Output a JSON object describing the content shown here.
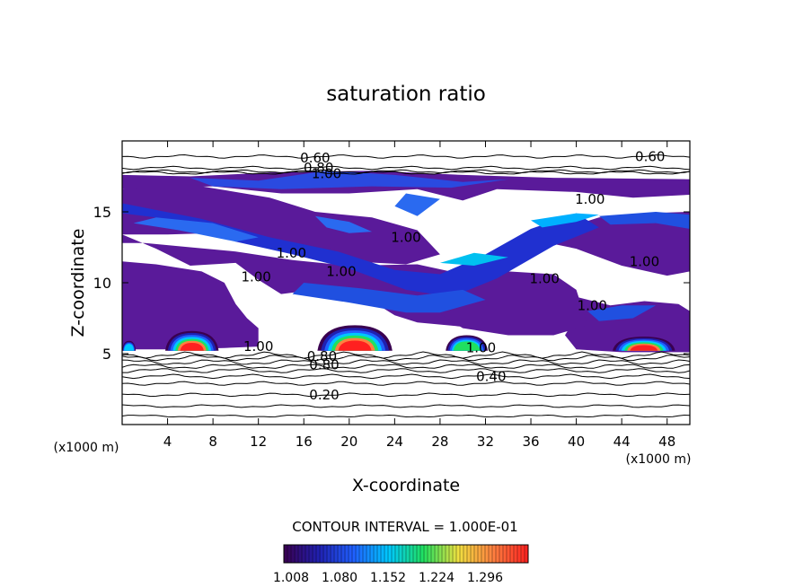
{
  "chart_data": {
    "type": "heatmap",
    "title": "saturation ratio",
    "xlabel": "X-coordinate",
    "ylabel": "Z-coordinate",
    "x_units": "(x1000 m)",
    "y_units": "(x1000 m)",
    "xlim": [
      0,
      50
    ],
    "ylim": [
      0,
      20
    ],
    "x_ticks": [
      "4",
      "8",
      "12",
      "16",
      "20",
      "24",
      "28",
      "32",
      "36",
      "40",
      "44",
      "48"
    ],
    "y_ticks": [
      "5",
      "10",
      "15"
    ],
    "contour_interval_label": "CONTOUR INTERVAL = 1.000E-01",
    "colorbar": {
      "labels": [
        "1.008",
        "1.080",
        "1.152",
        "1.224",
        "1.296"
      ],
      "min": 1.008,
      "max": 1.32,
      "colors": [
        "#3a0050",
        "#2020b0",
        "#2060ff",
        "#00c8ff",
        "#20e060",
        "#f0e040",
        "#ff8040",
        "#ff2020"
      ]
    },
    "contour_labels": [
      {
        "text": "0.60",
        "x": 17,
        "z": 18.8
      },
      {
        "text": "0.80",
        "x": 17.3,
        "z": 18.1
      },
      {
        "text": "1.00",
        "x": 18,
        "z": 17.7
      },
      {
        "text": "0.60",
        "x": 46.5,
        "z": 18.9
      },
      {
        "text": "1.00",
        "x": 41.2,
        "z": 15.9
      },
      {
        "text": "1.00",
        "x": 25,
        "z": 13.2
      },
      {
        "text": "1.00",
        "x": 14.9,
        "z": 12.1
      },
      {
        "text": "1.00",
        "x": 19.3,
        "z": 10.8
      },
      {
        "text": "1.00",
        "x": 11.8,
        "z": 10.4
      },
      {
        "text": "1.00",
        "x": 37.2,
        "z": 10.3
      },
      {
        "text": "1.00",
        "x": 46,
        "z": 11.5
      },
      {
        "text": "1.00",
        "x": 41.4,
        "z": 8.4
      },
      {
        "text": "1.00",
        "x": 12,
        "z": 5.5
      },
      {
        "text": "0.80",
        "x": 17.6,
        "z": 4.8
      },
      {
        "text": "0.80",
        "x": 17.8,
        "z": 4.2
      },
      {
        "text": "1.00",
        "x": 31.6,
        "z": 5.4
      },
      {
        "text": "0.40",
        "x": 32.5,
        "z": 3.4
      },
      {
        "text": "0.20",
        "x": 17.8,
        "z": 2.1
      }
    ],
    "peak_regions": [
      {
        "x": 6.1,
        "z": 5.9,
        "peak": 1.3
      },
      {
        "x": 20.5,
        "z": 5.9,
        "peak": 1.32
      },
      {
        "x": 30.4,
        "z": 5.7,
        "peak": 1.25
      },
      {
        "x": 45.8,
        "z": 5.6,
        "peak": 1.3
      }
    ]
  }
}
